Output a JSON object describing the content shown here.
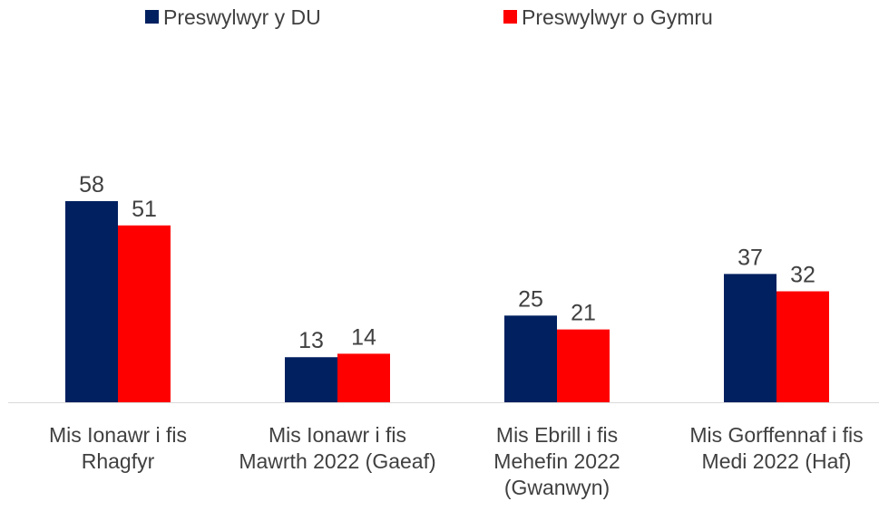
{
  "chart_data": {
    "type": "bar",
    "categories": [
      "Mis Ionawr i fis Rhagfyr",
      "Mis Ionawr i fis Mawrth 2022 (Gaeaf)",
      "Mis Ebrill i fis Mehefin 2022 (Gwanwyn)",
      "Mis Gorffennaf i fis Medi 2022 (Haf)"
    ],
    "series": [
      {
        "name": "Preswylwyr y DU",
        "color": "#002060",
        "values": [
          58,
          13,
          25,
          37
        ]
      },
      {
        "name": "Preswylwyr o Gymru",
        "color": "#ff0000",
        "values": [
          51,
          14,
          21,
          32
        ]
      }
    ],
    "legend": "top"
  }
}
